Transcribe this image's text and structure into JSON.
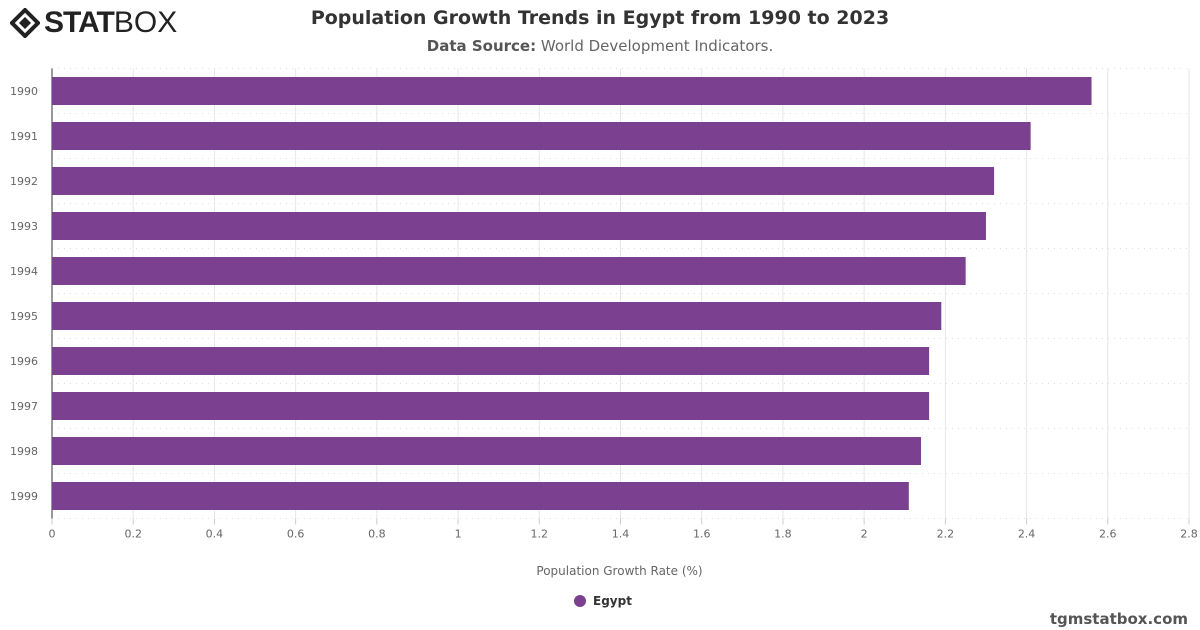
{
  "brand": {
    "logo_text_bold": "STAT",
    "logo_text_light": "BOX",
    "credit": "tgmstatbox.com"
  },
  "header": {
    "title": "Population Growth Trends in Egypt from 1990 to 2023",
    "source_label": "Data Source:",
    "source_value": "World Development Indicators."
  },
  "chart_data": {
    "type": "bar",
    "orientation": "horizontal",
    "title": "Population Growth Trends in Egypt from 1990 to 2023",
    "xlabel": "Population Growth Rate (%)",
    "ylabel": "",
    "categories": [
      "1990",
      "1991",
      "1992",
      "1993",
      "1994",
      "1995",
      "1996",
      "1997",
      "1998",
      "1999"
    ],
    "series": [
      {
        "name": "Egypt",
        "color": "#7b4190",
        "values": [
          2.56,
          2.41,
          2.32,
          2.3,
          2.25,
          2.19,
          2.16,
          2.16,
          2.14,
          2.11
        ]
      }
    ],
    "xlim": [
      0,
      2.8
    ],
    "xticks": [
      "0",
      "0.2",
      "0.4",
      "0.6",
      "0.8",
      "1",
      "1.2",
      "1.4",
      "1.6",
      "1.8",
      "2",
      "2.2",
      "2.4",
      "2.6",
      "2.8"
    ],
    "grid": true,
    "legend": "bottom"
  }
}
